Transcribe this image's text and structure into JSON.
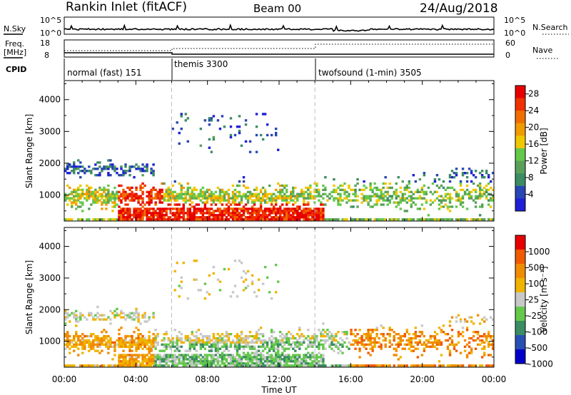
{
  "header": {
    "title": "Rankin Inlet (fitACF)",
    "beam": "Beam 00",
    "date": "24/Aug/2018"
  },
  "noise_panel": {
    "left_label": "N.Sky",
    "right_label": "N.Search",
    "left_ticks": [
      "10^5",
      "10^0"
    ],
    "right_ticks": [
      "10^5",
      "10^0"
    ]
  },
  "freq_panel": {
    "left_label_line1": "Freq.",
    "left_label_line2": "[MHz]",
    "right_label": "Nave",
    "left_ticks": [
      "18",
      "8"
    ],
    "right_ticks": [
      "60",
      "0"
    ]
  },
  "cpid": {
    "label": "CPID",
    "segments": [
      {
        "start_hour": 0,
        "label": "normal (fast) 151"
      },
      {
        "start_hour": 6,
        "label": "themis 3300"
      },
      {
        "start_hour": 14,
        "label": "twofsound (1-min) 3505"
      }
    ]
  },
  "chart_data": [
    {
      "type": "heatmap",
      "quantity": "Power",
      "ylabel": "Slant Range [km]",
      "xlabel": "Time UT",
      "xlim": [
        0,
        24
      ],
      "ylim": [
        180,
        4600
      ],
      "x_ticks": [
        "00:00",
        "04:00",
        "08:00",
        "12:00",
        "16:00",
        "20:00",
        "00:00"
      ],
      "y_ticks": [
        1000,
        2000,
        3000,
        4000
      ],
      "colorbar": {
        "label": "Power [dB]",
        "ticks": [
          4,
          8,
          12,
          16,
          20,
          24,
          28
        ],
        "range": [
          0,
          30
        ]
      },
      "mode_boundaries_hours": [
        6,
        14
      ]
    },
    {
      "type": "heatmap",
      "quantity": "Velocity",
      "ylabel": "Slant Range [km]",
      "xlabel": "Time UT",
      "xlim": [
        0,
        24
      ],
      "ylim": [
        180,
        4600
      ],
      "x_ticks": [
        "00:00",
        "04:00",
        "08:00",
        "12:00",
        "16:00",
        "20:00",
        "00:00"
      ],
      "y_ticks": [
        1000,
        2000,
        3000,
        4000
      ],
      "colorbar": {
        "label": "Velocity [m s⁻¹]",
        "ticks": [
          "1000",
          "500",
          "100",
          "25",
          "-25",
          "-100",
          "-500",
          "-1000"
        ]
      },
      "mode_boundaries_hours": [
        6,
        14
      ]
    }
  ],
  "colors": {
    "power_scale": [
      "#1f1fd6",
      "#2846b4",
      "#3c8c64",
      "#5aa05a",
      "#64c84b",
      "#f0c800",
      "#f09b00",
      "#f06e00",
      "#f03200",
      "#e60000"
    ],
    "velocity_scale": [
      "#0000c8",
      "#2850b4",
      "#3c8c64",
      "#64c84b",
      "#c8c8c8",
      "#f0b400",
      "#f08c00",
      "#f05a00",
      "#e60000"
    ],
    "mode_line": "#bbbbbb"
  },
  "x_axis_label": "Time UT"
}
